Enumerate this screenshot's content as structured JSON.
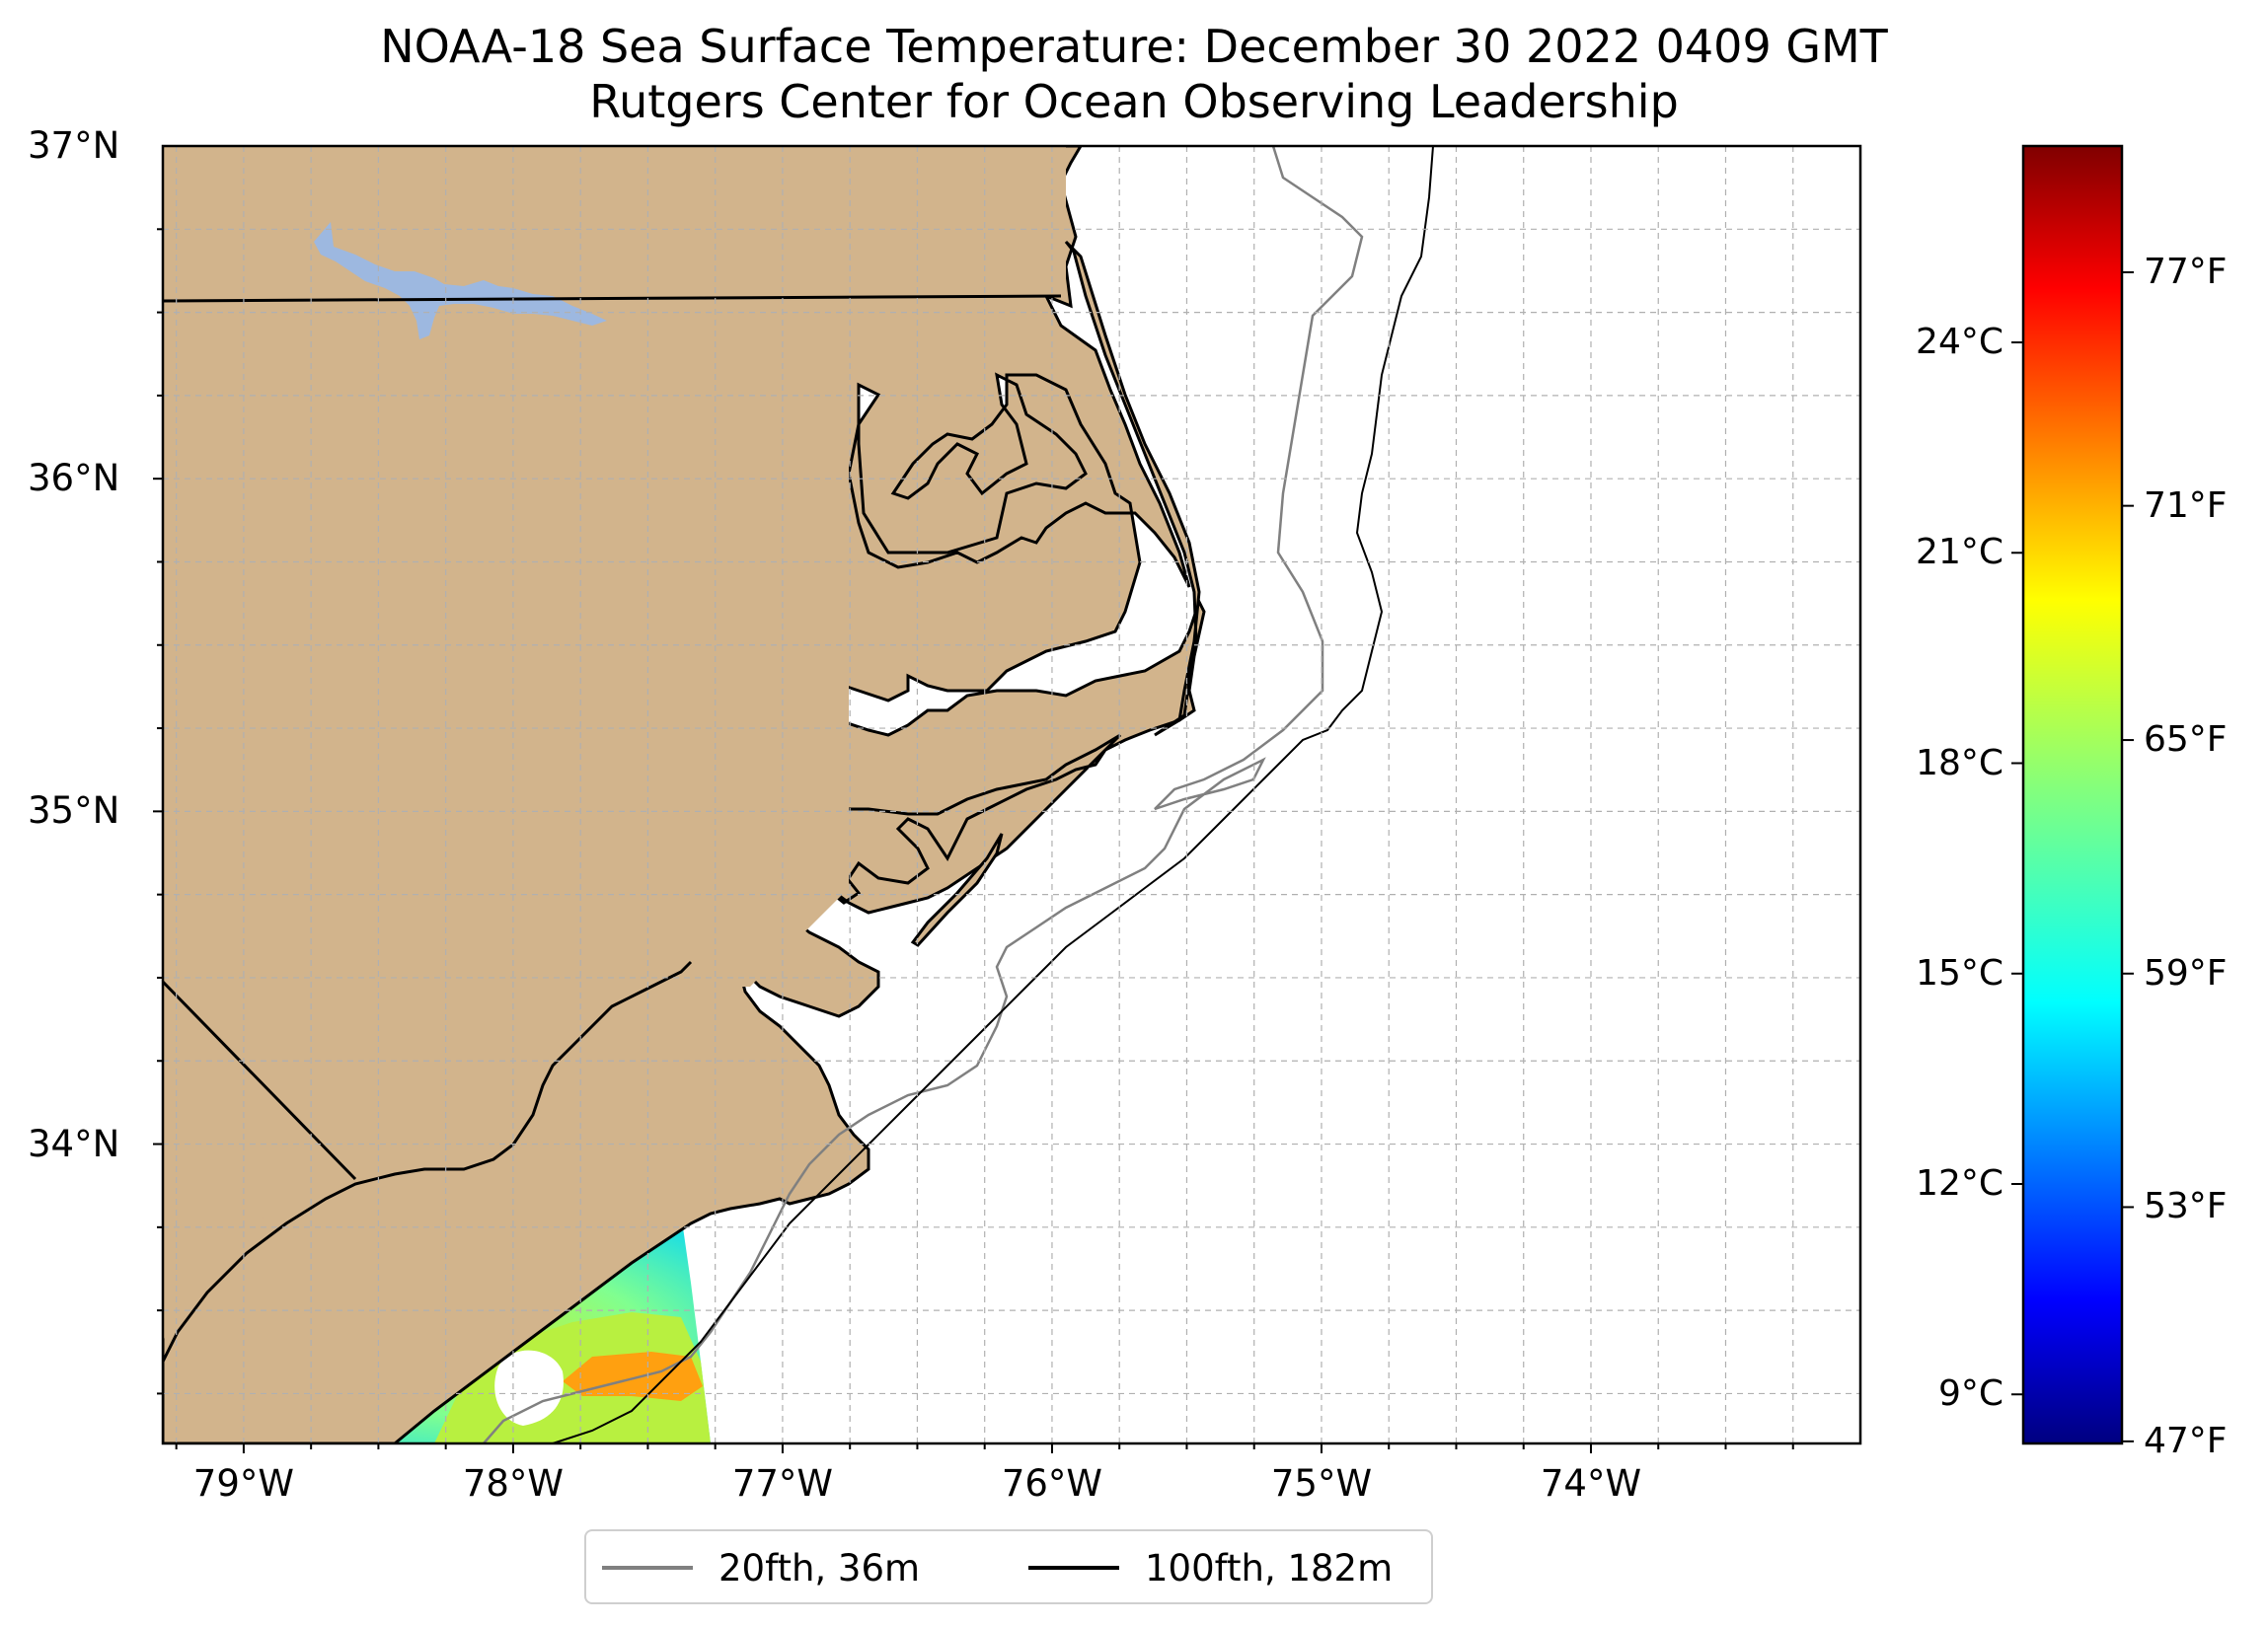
{
  "title": {
    "line1": "NOAA-18 Sea Surface Temperature: December 30 2022 0409 GMT",
    "line2": "Rutgers Center for Ocean Observing Leadership"
  },
  "map": {
    "extent": {
      "lon": [
        -79.3,
        -73.0
      ],
      "lat": [
        33.1,
        37.0
      ]
    },
    "lat_ticks": [
      {
        "value": 37,
        "label": "37°N"
      },
      {
        "value": 36,
        "label": "36°N"
      },
      {
        "value": 35,
        "label": "35°N"
      },
      {
        "value": 34,
        "label": "34°N"
      }
    ],
    "lon_ticks": [
      {
        "value": -79,
        "label": "79°W"
      },
      {
        "value": -78,
        "label": "78°W"
      },
      {
        "value": -77,
        "label": "77°W"
      },
      {
        "value": -76,
        "label": "76°W"
      },
      {
        "value": -75,
        "label": "75°W"
      },
      {
        "value": -74,
        "label": "74°W"
      }
    ],
    "gridlines": "dashed, every 0.25°",
    "colors": {
      "land": "#d2b48c",
      "water": "#ffffff",
      "lake": "#9db8e0",
      "coastline": "#000000",
      "isobath_20fth": "#808080",
      "isobath_100fth": "#000000",
      "grid": "#b0b0b0"
    }
  },
  "colorbar": {
    "colormap": "jet",
    "range_c": [
      8.3,
      26.8
    ],
    "celsius_ticks": [
      {
        "value": 24,
        "label": "24°C"
      },
      {
        "value": 21,
        "label": "21°C"
      },
      {
        "value": 18,
        "label": "18°C"
      },
      {
        "value": 15,
        "label": "15°C"
      },
      {
        "value": 12,
        "label": "12°C"
      },
      {
        "value": 9,
        "label": "9°C"
      }
    ],
    "fahrenheit_ticks": [
      {
        "value_c": 25,
        "label": "77°F"
      },
      {
        "value_c": 21.67,
        "label": "71°F"
      },
      {
        "value_c": 18.33,
        "label": "65°F"
      },
      {
        "value_c": 15,
        "label": "59°F"
      },
      {
        "value_c": 11.67,
        "label": "53°F"
      },
      {
        "value_c": 8.33,
        "label": "47°F"
      }
    ]
  },
  "legend": {
    "items": [
      {
        "label": "20fth, 36m",
        "color": "#808080"
      },
      {
        "label": "100fth, 182m",
        "color": "#000000"
      }
    ]
  }
}
